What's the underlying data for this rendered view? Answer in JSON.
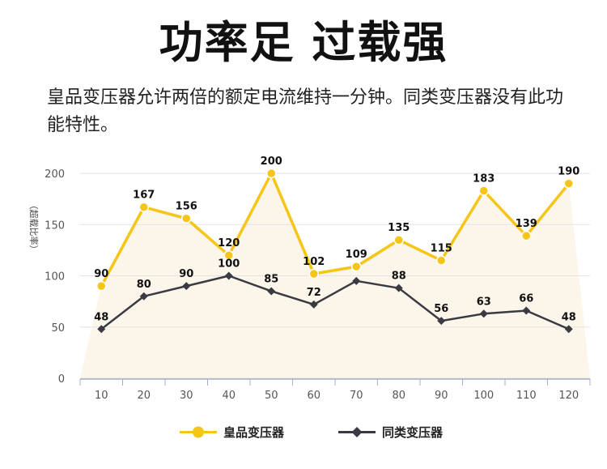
{
  "title": "功率足  过载强",
  "description": "皇品变压器允许两倍的额定电流维持一分钟。同类变压器没有此功能特性。",
  "chart_data": {
    "type": "line",
    "ylabel": "（超载比率）",
    "xlabel": "",
    "x": [
      10,
      20,
      30,
      40,
      50,
      60,
      70,
      80,
      90,
      100,
      110,
      120
    ],
    "ylim": [
      0,
      200
    ],
    "yticks": [
      0,
      50,
      100,
      150,
      200
    ],
    "grid": true,
    "legend_position": "bottom",
    "series": [
      {
        "name": "皇品变压器",
        "values": [
          90,
          167,
          156,
          120,
          200,
          102,
          109,
          135,
          115,
          183,
          139,
          190
        ],
        "color": "#f5c518",
        "marker": "circle"
      },
      {
        "name": "同类变压器",
        "values": [
          48,
          80,
          90,
          100,
          85,
          72,
          95,
          88,
          56,
          63,
          66,
          48
        ],
        "color": "#3a3a42",
        "marker": "diamond"
      }
    ],
    "data_labels": [
      [
        "90",
        "167",
        "156",
        "120",
        "200",
        "102",
        "109",
        "135",
        "115",
        "183",
        "139",
        "190"
      ],
      [
        "48",
        "80",
        "90",
        "100",
        "85",
        "72",
        "",
        "88",
        "56",
        "63",
        "66",
        "48"
      ]
    ]
  }
}
